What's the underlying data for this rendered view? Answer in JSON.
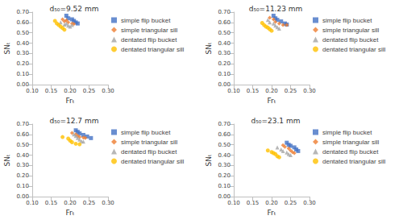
{
  "chart_data": [
    {
      "type": "scatter",
      "title": "d₅₀=9.52 mm",
      "x_label": "Frₜ",
      "y_label": "SNₜ",
      "xlim": [
        0.1,
        0.3
      ],
      "xticks": [
        {
          "value": 0.1,
          "label": "0.10"
        },
        {
          "value": 0.15,
          "label": "0.15"
        },
        {
          "value": 0.2,
          "label": "0.20"
        },
        {
          "value": 0.25,
          "label": "0.25"
        },
        {
          "value": 0.3,
          "label": "0.30"
        }
      ],
      "ylim": [
        0,
        0.7
      ],
      "yticks": [
        {
          "value": 0,
          "label": "0.00"
        },
        {
          "value": 0.1,
          "label": "0.10"
        },
        {
          "value": 0.2,
          "label": "0.20"
        },
        {
          "value": 0.3,
          "label": "0.30"
        },
        {
          "value": 0.4,
          "label": "0.40"
        },
        {
          "value": 0.5,
          "label": "0.50"
        },
        {
          "value": 0.6,
          "label": "0.60"
        },
        {
          "value": 0.7,
          "label": "0.70"
        }
      ],
      "grid": false,
      "legend": "right",
      "series": [
        {
          "name": "simple flip bucket",
          "color": "#4472c4",
          "marker": "square",
          "x": [
            0.19,
            0.195,
            0.205,
            0.21,
            0.215,
            0.22
          ],
          "values": [
            0.665,
            0.64,
            0.63,
            0.615,
            0.6,
            0.59
          ]
        },
        {
          "name": "simple triangular sill",
          "color": "#ed7d31",
          "marker": "diamond",
          "x": [
            0.18,
            0.185,
            0.19,
            0.195,
            0.205,
            0.21
          ],
          "values": [
            0.63,
            0.61,
            0.62,
            0.6,
            0.59,
            0.585
          ]
        },
        {
          "name": "dentated flip bucket",
          "color": "#a5a5a5",
          "marker": "triangle",
          "x": [
            0.175,
            0.185,
            0.19,
            0.195,
            0.2,
            0.205
          ],
          "values": [
            0.6,
            0.58,
            0.59,
            0.57,
            0.56,
            0.575
          ]
        },
        {
          "name": "dentated triangular sill",
          "color": "#ffc000",
          "marker": "circle",
          "x": [
            0.16,
            0.165,
            0.17,
            0.175,
            0.18,
            0.185
          ],
          "values": [
            0.615,
            0.59,
            0.575,
            0.56,
            0.545,
            0.53
          ]
        }
      ]
    },
    {
      "type": "scatter",
      "title": "d₅₀=11.23 mm",
      "x_label": "Frₜ",
      "y_label": "SNₜ",
      "xlim": [
        0.1,
        0.3
      ],
      "xticks": [
        {
          "value": 0.1,
          "label": "0.10"
        },
        {
          "value": 0.15,
          "label": "0.15"
        },
        {
          "value": 0.2,
          "label": "0.20"
        },
        {
          "value": 0.25,
          "label": "0.25"
        },
        {
          "value": 0.3,
          "label": "0.30"
        }
      ],
      "ylim": [
        0,
        0.7
      ],
      "yticks": [
        {
          "value": 0,
          "label": "0.00"
        },
        {
          "value": 0.1,
          "label": "0.10"
        },
        {
          "value": 0.2,
          "label": "0.20"
        },
        {
          "value": 0.3,
          "label": "0.30"
        },
        {
          "value": 0.4,
          "label": "0.40"
        },
        {
          "value": 0.5,
          "label": "0.50"
        },
        {
          "value": 0.6,
          "label": "0.60"
        },
        {
          "value": 0.7,
          "label": "0.70"
        }
      ],
      "grid": false,
      "legend": "right",
      "series": [
        {
          "name": "simple flip bucket",
          "color": "#4472c4",
          "marker": "square",
          "x": [
            0.205,
            0.21,
            0.215,
            0.225,
            0.235,
            0.24
          ],
          "values": [
            0.665,
            0.64,
            0.625,
            0.61,
            0.59,
            0.58
          ]
        },
        {
          "name": "simple triangular sill",
          "color": "#ed7d31",
          "marker": "diamond",
          "x": [
            0.195,
            0.205,
            0.21,
            0.22,
            0.23,
            0.24
          ],
          "values": [
            0.645,
            0.63,
            0.605,
            0.59,
            0.575,
            0.575
          ]
        },
        {
          "name": "dentated flip bucket",
          "color": "#a5a5a5",
          "marker": "triangle",
          "x": [
            0.19,
            0.195,
            0.205,
            0.21,
            0.215,
            0.22
          ],
          "values": [
            0.625,
            0.6,
            0.59,
            0.57,
            0.555,
            0.54
          ]
        },
        {
          "name": "dentated triangular sill",
          "color": "#ffc000",
          "marker": "circle",
          "x": [
            0.175,
            0.18,
            0.185,
            0.19,
            0.195,
            0.2
          ],
          "values": [
            0.595,
            0.575,
            0.56,
            0.55,
            0.535,
            0.52
          ]
        }
      ]
    },
    {
      "type": "scatter",
      "title": "d₅₀=12.7 mm",
      "x_label": "Frₜ",
      "y_label": "SNₜ",
      "xlim": [
        0.1,
        0.3
      ],
      "xticks": [
        {
          "value": 0.1,
          "label": "0.10"
        },
        {
          "value": 0.15,
          "label": "0.15"
        },
        {
          "value": 0.2,
          "label": "0.20"
        },
        {
          "value": 0.25,
          "label": "0.25"
        },
        {
          "value": 0.3,
          "label": "0.30"
        }
      ],
      "ylim": [
        0,
        0.7
      ],
      "yticks": [
        {
          "value": 0,
          "label": "0.00"
        },
        {
          "value": 0.1,
          "label": "0.10"
        },
        {
          "value": 0.2,
          "label": "0.20"
        },
        {
          "value": 0.3,
          "label": "0.30"
        },
        {
          "value": 0.4,
          "label": "0.40"
        },
        {
          "value": 0.5,
          "label": "0.50"
        },
        {
          "value": 0.6,
          "label": "0.60"
        },
        {
          "value": 0.7,
          "label": "0.70"
        }
      ],
      "grid": false,
      "legend": "right",
      "series": [
        {
          "name": "simple flip bucket",
          "color": "#4472c4",
          "marker": "square",
          "x": [
            0.215,
            0.22,
            0.225,
            0.235,
            0.245,
            0.255
          ],
          "values": [
            0.64,
            0.625,
            0.61,
            0.595,
            0.58,
            0.565
          ]
        },
        {
          "name": "simple triangular sill",
          "color": "#ed7d31",
          "marker": "diamond",
          "x": [
            0.205,
            0.215,
            0.22,
            0.225,
            0.235,
            0.24
          ],
          "values": [
            0.615,
            0.6,
            0.585,
            0.575,
            0.57,
            0.565
          ]
        },
        {
          "name": "dentated flip bucket",
          "color": "#a5a5a5",
          "marker": "triangle",
          "x": [
            0.21,
            0.215,
            0.22,
            0.225,
            0.23,
            0.235
          ],
          "values": [
            0.6,
            0.585,
            0.565,
            0.55,
            0.535,
            0.53
          ]
        },
        {
          "name": "dentated triangular sill",
          "color": "#ffc000",
          "marker": "circle",
          "x": [
            0.18,
            0.195,
            0.2,
            0.205,
            0.215,
            0.225
          ],
          "values": [
            0.575,
            0.56,
            0.54,
            0.525,
            0.51,
            0.505
          ]
        }
      ]
    },
    {
      "type": "scatter",
      "title": "d₅₀=23.1 mm",
      "x_label": "Frₜ",
      "y_label": "SNₜ",
      "xlim": [
        0.1,
        0.3
      ],
      "xticks": [
        {
          "value": 0.1,
          "label": "0.10"
        },
        {
          "value": 0.15,
          "label": "0.15"
        },
        {
          "value": 0.2,
          "label": "0.20"
        },
        {
          "value": 0.25,
          "label": "0.25"
        },
        {
          "value": 0.3,
          "label": "0.30"
        }
      ],
      "ylim": [
        0,
        0.7
      ],
      "yticks": [
        {
          "value": 0,
          "label": "0.00"
        },
        {
          "value": 0.1,
          "label": "0.10"
        },
        {
          "value": 0.2,
          "label": "0.20"
        },
        {
          "value": 0.3,
          "label": "0.30"
        },
        {
          "value": 0.4,
          "label": "0.40"
        },
        {
          "value": 0.5,
          "label": "0.50"
        },
        {
          "value": 0.6,
          "label": "0.60"
        },
        {
          "value": 0.7,
          "label": "0.70"
        }
      ],
      "grid": false,
      "legend": "right",
      "series": [
        {
          "name": "simple flip bucket",
          "color": "#4472c4",
          "marker": "square",
          "x": [
            0.24,
            0.245,
            0.25,
            0.26,
            0.265,
            0.27
          ],
          "values": [
            0.52,
            0.5,
            0.49,
            0.475,
            0.455,
            0.44
          ]
        },
        {
          "name": "simple triangular sill",
          "color": "#ed7d31",
          "marker": "diamond",
          "x": [
            0.23,
            0.235,
            0.245,
            0.25,
            0.255,
            0.26
          ],
          "values": [
            0.495,
            0.48,
            0.465,
            0.445,
            0.43,
            0.42
          ]
        },
        {
          "name": "dentated flip bucket",
          "color": "#a5a5a5",
          "marker": "triangle",
          "x": [
            0.215,
            0.225,
            0.23,
            0.24,
            0.245,
            0.25
          ],
          "values": [
            0.475,
            0.455,
            0.44,
            0.425,
            0.41,
            0.4
          ]
        },
        {
          "name": "dentated triangular sill",
          "color": "#ffc000",
          "marker": "circle",
          "x": [
            0.19,
            0.2,
            0.205,
            0.21,
            0.215,
            0.22
          ],
          "values": [
            0.445,
            0.43,
            0.42,
            0.41,
            0.39,
            0.38
          ]
        }
      ]
    }
  ]
}
